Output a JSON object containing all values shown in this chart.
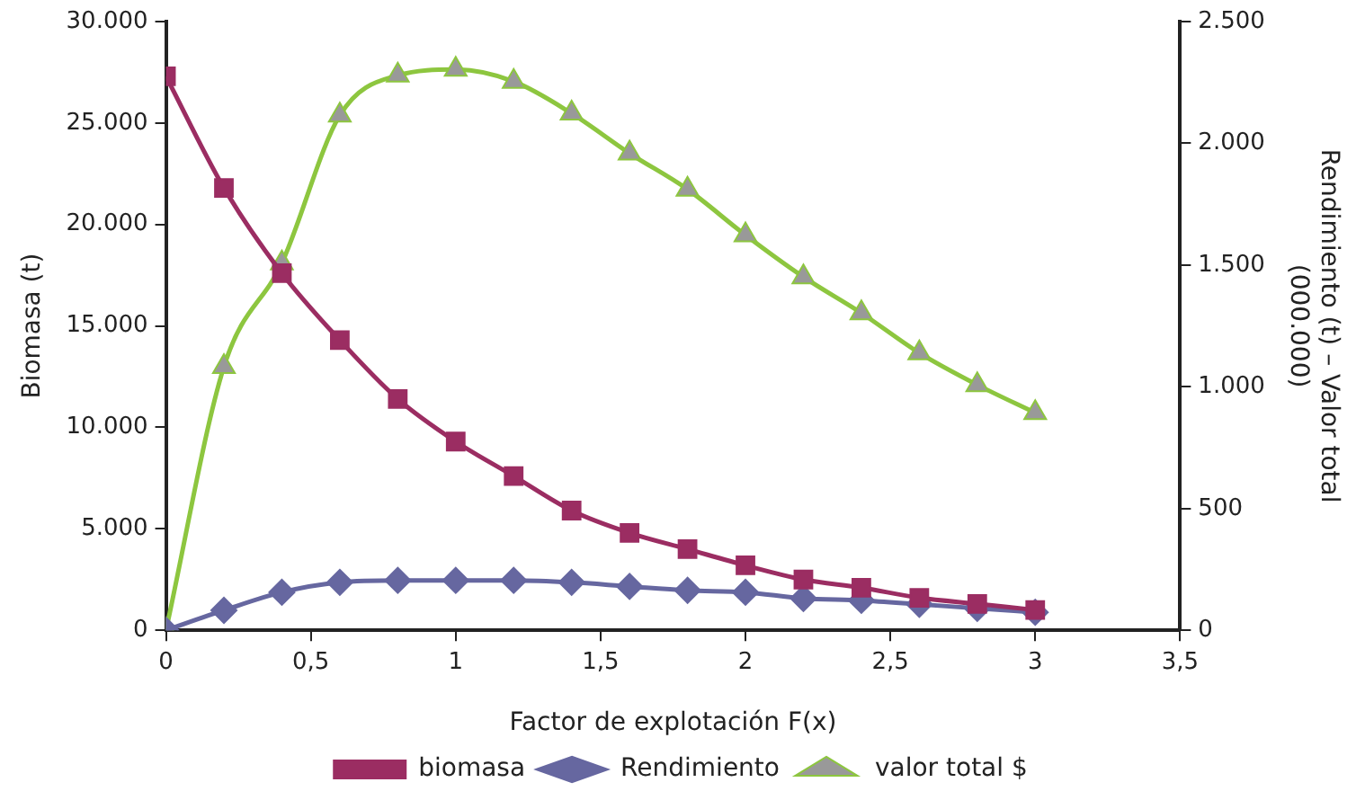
{
  "chart_data": {
    "type": "line",
    "xlabel": "Factor de explotación F(x)",
    "ylabel": "Biomasa (t)",
    "y2label": "Rendimiento (t) – Valor total\n(000.000)",
    "x": [
      0,
      0.2,
      0.4,
      0.6,
      0.8,
      1,
      1.2,
      1.4,
      1.6,
      1.8,
      2,
      2.2,
      2.4,
      2.6,
      2.8,
      3
    ],
    "series": [
      {
        "name": "biomasa",
        "color": "#9b2d62",
        "marker": "square",
        "values": [
          27300,
          21800,
          17600,
          14300,
          11400,
          9300,
          7600,
          5900,
          4800,
          4000,
          3200,
          2500,
          2100,
          1600,
          1300,
          1000
        ]
      },
      {
        "name": "Rendimiento",
        "color": "#6667a0",
        "marker": "diamond",
        "axis": "y2",
        "values": [
          0,
          82,
          156,
          197,
          205,
          205,
          205,
          197,
          180,
          164,
          156,
          131,
          123,
          107,
          90,
          74
        ]
      },
      {
        "name": "valor total $",
        "color": "#8dc63f",
        "marker": "triangle",
        "axis": "y2",
        "values": [
          0,
          1082,
          1508,
          2115,
          2279,
          2303,
          2254,
          2123,
          1959,
          1811,
          1623,
          1451,
          1303,
          1139,
          1008,
          893
        ]
      }
    ],
    "xlim": [
      0,
      3.5
    ],
    "xticks": [
      0,
      {
        "value": 0.5,
        "label": "0,5"
      },
      1,
      {
        "value": 1.5,
        "label": "1,5"
      },
      2,
      {
        "value": 2.5,
        "label": "2,5"
      },
      3,
      {
        "value": 3.5,
        "label": "3,5"
      }
    ],
    "ylim": [
      0,
      30000
    ],
    "yticks": [
      0,
      {
        "value": 5000,
        "label": "5.000"
      },
      {
        "value": 10000,
        "label": "10.000"
      },
      {
        "value": 15000,
        "label": "15.000"
      },
      {
        "value": 20000,
        "label": "20.000"
      },
      {
        "value": 25000,
        "label": "25.000"
      },
      {
        "value": 30000,
        "label": "30.000"
      }
    ],
    "y2lim": [
      0,
      2500
    ],
    "y2ticks": [
      0,
      500,
      {
        "value": 1000,
        "label": "1.000"
      },
      {
        "value": 1500,
        "label": "1.500"
      },
      {
        "value": 2000,
        "label": "2.000"
      },
      {
        "value": 2500,
        "label": "2.500"
      }
    ],
    "grid": false,
    "legend": "bottom",
    "line_style": "solid"
  }
}
